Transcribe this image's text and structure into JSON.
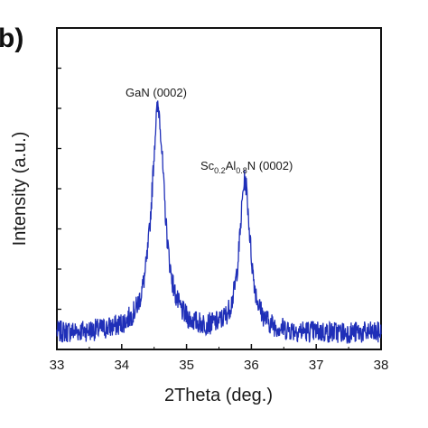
{
  "panel_label": "b)",
  "chart_data": {
    "type": "line",
    "xlabel": "2Theta (deg.)",
    "ylabel": "Intensity (a.u.)",
    "xlim": [
      33,
      38
    ],
    "ylim": [
      0,
      1
    ],
    "x_ticks": [
      "33",
      "34",
      "35",
      "36",
      "37",
      "38"
    ],
    "y_tick_labels_shown": false,
    "grid": false,
    "line_color": "#1f2fb8",
    "y_units": "a.u.",
    "peaks": [
      {
        "label": "GaN (0002)",
        "x": 34.56,
        "y": 0.7,
        "width": 0.12
      },
      {
        "label": "Sc0.2Al0.8N (0002)",
        "x": 35.9,
        "y": 0.47,
        "width": 0.1
      }
    ],
    "annotations": {
      "gan": "GaN (0002)",
      "scaln_pre": "Sc",
      "scaln_sub1": "0.2",
      "scaln_mid": "Al",
      "scaln_sub2": "0.8",
      "scaln_post": "N (0002)"
    },
    "background": 0.05,
    "noise": 0.035
  }
}
